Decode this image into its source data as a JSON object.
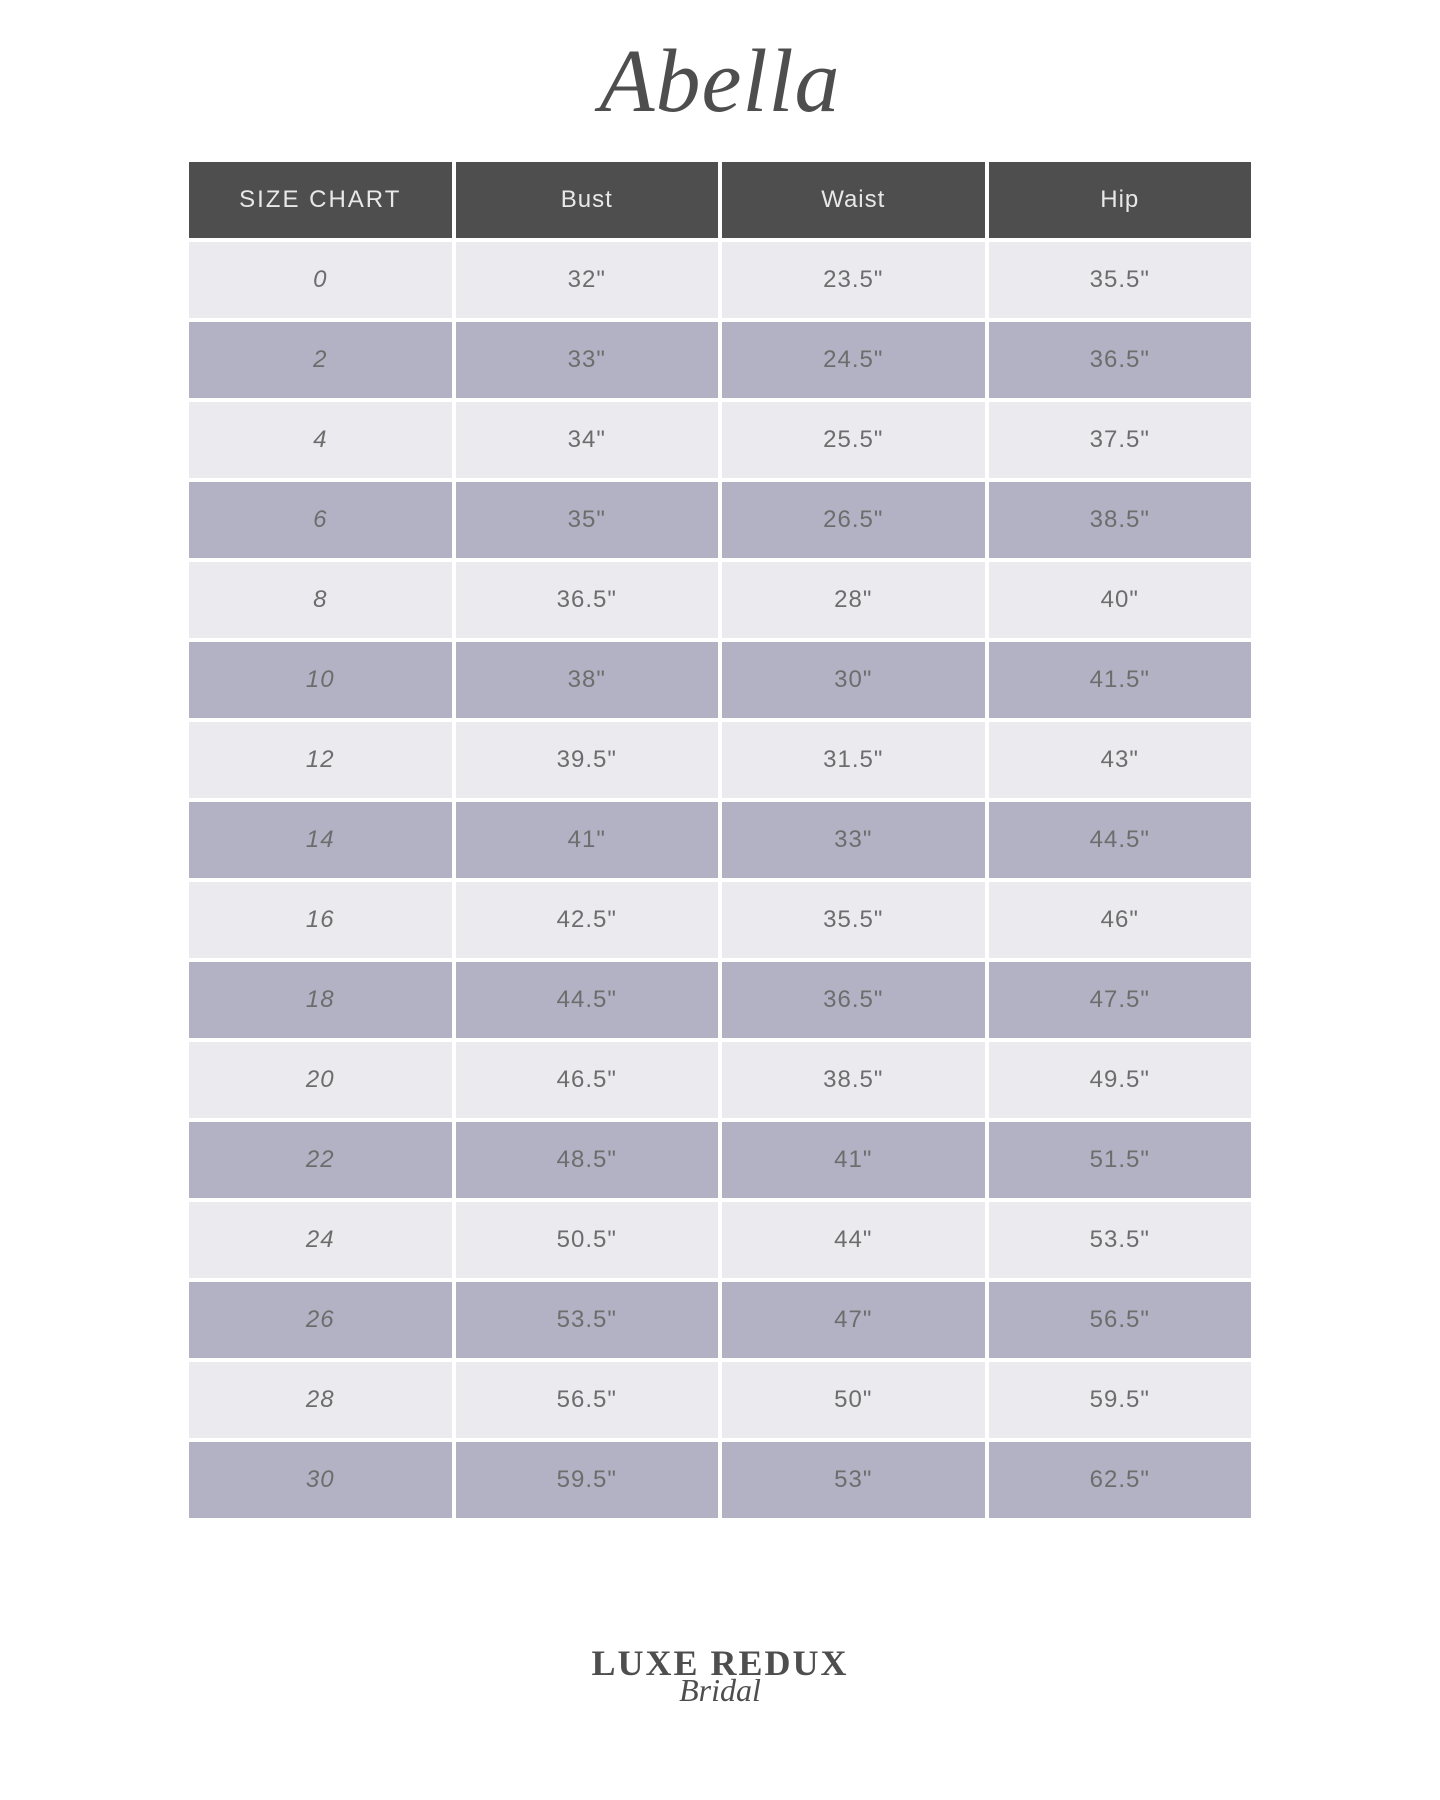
{
  "brand": "Abella",
  "table": {
    "columns": [
      "SIZE CHART",
      "Bust",
      "Waist",
      "Hip"
    ],
    "rows": [
      [
        "0",
        "32\"",
        "23.5\"",
        "35.5\""
      ],
      [
        "2",
        "33\"",
        "24.5\"",
        "36.5\""
      ],
      [
        "4",
        "34\"",
        "25.5\"",
        "37.5\""
      ],
      [
        "6",
        "35\"",
        "26.5\"",
        "38.5\""
      ],
      [
        "8",
        "36.5\"",
        "28\"",
        "40\""
      ],
      [
        "10",
        "38\"",
        "30\"",
        "41.5\""
      ],
      [
        "12",
        "39.5\"",
        "31.5\"",
        "43\""
      ],
      [
        "14",
        "41\"",
        "33\"",
        "44.5\""
      ],
      [
        "16",
        "42.5\"",
        "35.5\"",
        "46\""
      ],
      [
        "18",
        "44.5\"",
        "36.5\"",
        "47.5\""
      ],
      [
        "20",
        "46.5\"",
        "38.5\"",
        "49.5\""
      ],
      [
        "22",
        "48.5\"",
        "41\"",
        "51.5\""
      ],
      [
        "24",
        "50.5\"",
        "44\"",
        "53.5\""
      ],
      [
        "26",
        "53.5\"",
        "47\"",
        "56.5\""
      ],
      [
        "28",
        "56.5\"",
        "50\"",
        "59.5\""
      ],
      [
        "30",
        "59.5\"",
        "53\"",
        "62.5\""
      ]
    ],
    "header_bg": "#4e4e4e",
    "header_text_color": "#e8e8e8",
    "row_light_bg": "#ebeaef",
    "row_dark_bg": "#b3b2c4",
    "cell_text_color": "#6d6d6d",
    "cell_fontsize": 24,
    "header_fontsize": 24,
    "column_count": 4
  },
  "footer": {
    "line1": "LUXE REDUX",
    "line2": "Bridal"
  },
  "colors": {
    "page_bg": "#ffffff",
    "brand_color": "#4e4e4e",
    "footer_color": "#4e4e4e"
  }
}
